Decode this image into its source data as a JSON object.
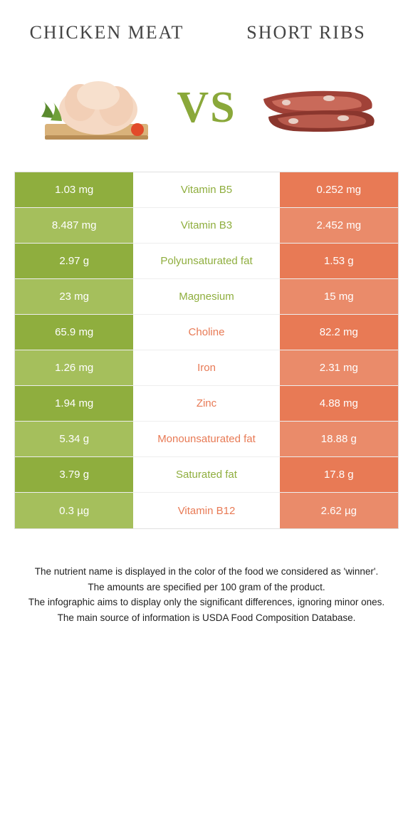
{
  "header": {
    "left_title": "Chicken meat",
    "right_title": "Short ribs"
  },
  "vs_label": "VS",
  "colors": {
    "green": "#8fae3e",
    "green_light": "#a5bf5c",
    "orange": "#e87a55",
    "orange_light": "#ea8b6a"
  },
  "rows": [
    {
      "nutrient": "Vitamin B5",
      "winner": "left",
      "left": "1.03 mg",
      "right": "0.252 mg"
    },
    {
      "nutrient": "Vitamin B3",
      "winner": "left",
      "left": "8.487 mg",
      "right": "2.452 mg"
    },
    {
      "nutrient": "Polyunsaturated fat",
      "winner": "left",
      "left": "2.97 g",
      "right": "1.53 g"
    },
    {
      "nutrient": "Magnesium",
      "winner": "left",
      "left": "23 mg",
      "right": "15 mg"
    },
    {
      "nutrient": "Choline",
      "winner": "right",
      "left": "65.9 mg",
      "right": "82.2 mg"
    },
    {
      "nutrient": "Iron",
      "winner": "right",
      "left": "1.26 mg",
      "right": "2.31 mg"
    },
    {
      "nutrient": "Zinc",
      "winner": "right",
      "left": "1.94 mg",
      "right": "4.88 mg"
    },
    {
      "nutrient": "Monounsaturated fat",
      "winner": "right",
      "left": "5.34 g",
      "right": "18.88 g"
    },
    {
      "nutrient": "Saturated fat",
      "winner": "left",
      "left": "3.79 g",
      "right": "17.8 g"
    },
    {
      "nutrient": "Vitamin B12",
      "winner": "right",
      "left": "0.3 µg",
      "right": "2.62 µg"
    }
  ],
  "footnotes": [
    "The nutrient name is displayed in the color of the food we considered as 'winner'.",
    "The amounts are specified per 100 gram of the product.",
    "The infographic aims to display only the significant differences, ignoring minor ones.",
    "The main source of information is USDA Food Composition Database."
  ]
}
